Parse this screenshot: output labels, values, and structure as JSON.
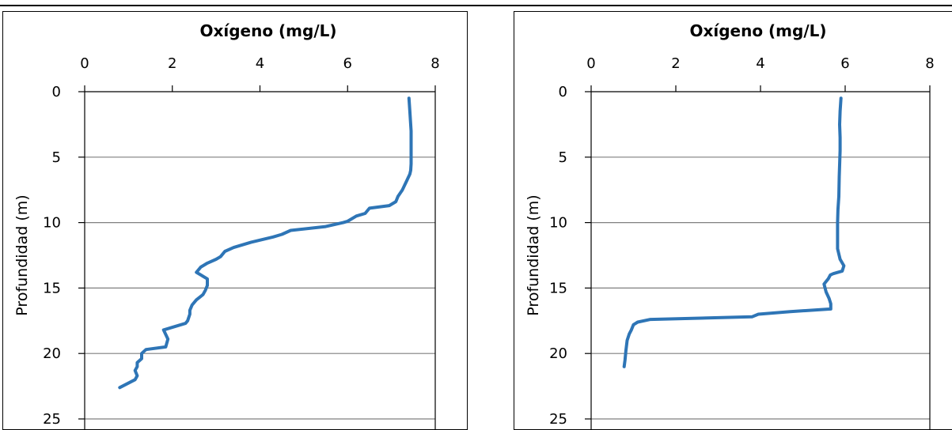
{
  "chart_data": [
    {
      "type": "line",
      "title": "Oxígeno (mg/L)",
      "xlabel": "Oxígeno (mg/L)",
      "ylabel": "Profundidad (m)",
      "xlim": [
        0,
        8
      ],
      "ylim": [
        0,
        25
      ],
      "y_inverted": true,
      "x_axis_position": "top",
      "x_ticks": [
        "0",
        "2",
        "4",
        "6",
        "8"
      ],
      "y_ticks": [
        "0",
        "5",
        "10",
        "15",
        "20",
        "25"
      ],
      "grid": "horizontal",
      "color": "#2e75b6",
      "series": [
        {
          "x": [
            7.4,
            7.42,
            7.45,
            7.45,
            7.45,
            7.44,
            7.42,
            7.35,
            7.25,
            7.15,
            7.1,
            6.95,
            6.5,
            6.4,
            6.2,
            6.0,
            5.9,
            5.5,
            4.7,
            4.5,
            4.3,
            3.8,
            3.4,
            3.2,
            3.1,
            3.0,
            2.8,
            2.65,
            2.55,
            2.8,
            2.8,
            2.75,
            2.7,
            2.55,
            2.45,
            2.4,
            2.4,
            2.35,
            2.3,
            2.0,
            1.8,
            1.9,
            1.85,
            1.4,
            1.3,
            1.3,
            1.2,
            1.2,
            1.15,
            1.2,
            1.15,
            0.8
          ],
          "y": [
            0.5,
            1.5,
            3.0,
            4.5,
            5.5,
            6.0,
            6.3,
            6.8,
            7.5,
            8.0,
            8.4,
            8.7,
            8.9,
            9.3,
            9.5,
            9.9,
            10.0,
            10.3,
            10.6,
            10.9,
            11.1,
            11.5,
            11.9,
            12.2,
            12.6,
            12.8,
            13.1,
            13.4,
            13.8,
            14.3,
            14.8,
            15.2,
            15.5,
            15.9,
            16.3,
            16.7,
            17.0,
            17.5,
            17.7,
            18.0,
            18.2,
            18.9,
            19.5,
            19.7,
            20.0,
            20.4,
            20.7,
            21.0,
            21.3,
            21.7,
            22.0,
            22.6
          ]
        }
      ]
    },
    {
      "type": "line",
      "title": "Oxígeno (mg/L)",
      "xlabel": "Oxígeno (mg/L)",
      "ylabel": "Profundidad (m)",
      "xlim": [
        0,
        8
      ],
      "ylim": [
        0,
        25
      ],
      "y_inverted": true,
      "x_axis_position": "top",
      "x_ticks": [
        "0",
        "2",
        "4",
        "6",
        "8"
      ],
      "y_ticks": [
        "0",
        "5",
        "10",
        "15",
        "20",
        "25"
      ],
      "grid": "horizontal",
      "color": "#2e75b6",
      "series": [
        {
          "x": [
            5.9,
            5.88,
            5.87,
            5.88,
            5.88,
            5.86,
            5.85,
            5.83,
            5.82,
            5.82,
            5.88,
            5.97,
            5.93,
            5.72,
            5.65,
            5.6,
            5.5,
            5.55,
            5.62,
            5.66,
            5.66,
            4.7,
            3.95,
            3.8,
            1.4,
            1.1,
            1.0,
            0.95,
            0.9,
            0.85,
            0.82,
            0.8,
            0.78
          ],
          "y": [
            0.5,
            1.5,
            2.5,
            3.5,
            4.5,
            6.5,
            8.0,
            9.0,
            10.0,
            12.0,
            12.8,
            13.3,
            13.7,
            13.9,
            14.0,
            14.3,
            14.7,
            15.3,
            15.8,
            16.2,
            16.6,
            16.8,
            17.0,
            17.2,
            17.4,
            17.6,
            17.8,
            18.2,
            18.5,
            19.0,
            19.8,
            20.5,
            21.0
          ]
        }
      ]
    }
  ]
}
